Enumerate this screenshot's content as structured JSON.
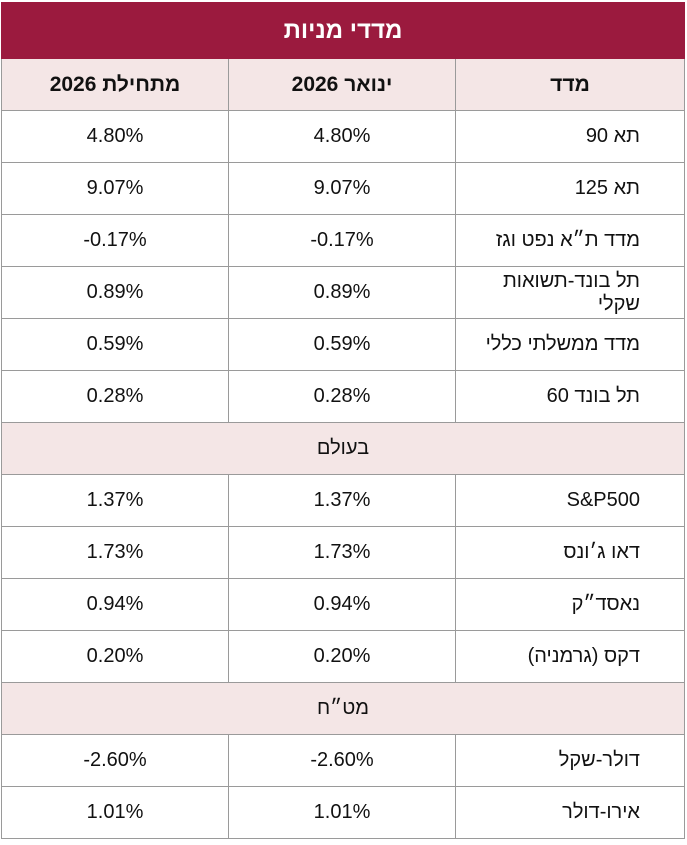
{
  "title": "מדדי מניות",
  "header": [
    "מדד",
    "ינואר 2026",
    "מתחילת 2026"
  ],
  "groups": [
    {
      "rows": [
        [
          "תא 90",
          "4.80%",
          "4.80%"
        ],
        [
          "תא 125",
          "9.07%",
          "9.07%"
        ],
        [
          "מדד ת״א נפט וגז",
          "-0.17%",
          "-0.17%"
        ],
        [
          "תל בונד-תשואות שקלי",
          "0.89%",
          "0.89%"
        ],
        [
          "מדד ממשלתי כללי",
          "0.59%",
          "0.59%"
        ],
        [
          "תל בונד 60",
          "0.28%",
          "0.28%"
        ]
      ]
    },
    {
      "label": "בעולם",
      "rows": [
        [
          "S&P500",
          "1.37%",
          "1.37%"
        ],
        [
          "דאו ג׳ונס",
          "1.73%",
          "1.73%"
        ],
        [
          "נאסד״ק",
          "0.94%",
          "0.94%"
        ],
        [
          "דקס (גרמניה)",
          "0.20%",
          "0.20%"
        ]
      ]
    },
    {
      "label": "מט״ח",
      "rows": [
        [
          "דולר-שקל",
          "-2.60%",
          "-2.60%"
        ],
        [
          "אירו-דולר",
          "1.01%",
          "1.01%"
        ]
      ]
    }
  ]
}
